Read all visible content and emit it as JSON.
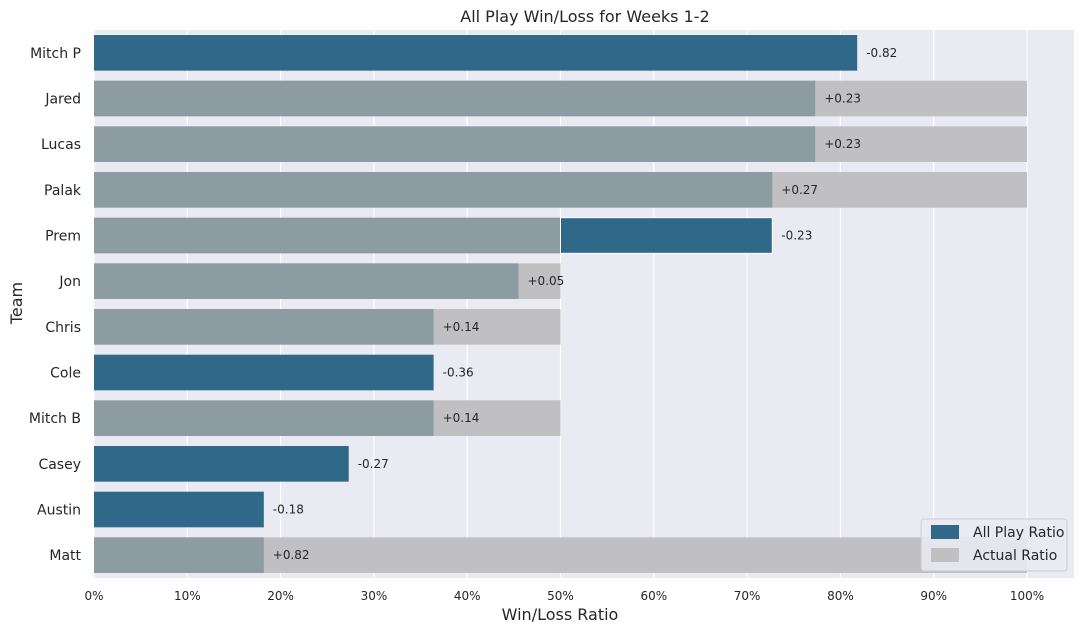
{
  "chart_data": {
    "type": "bar",
    "orientation": "horizontal",
    "title": "All Play Win/Loss for Weeks 1-2",
    "xlabel": "Win/Loss Ratio",
    "ylabel": "Team",
    "xlim": [
      0,
      1.05
    ],
    "x_ticks": [
      "0%",
      "10%",
      "20%",
      "30%",
      "40%",
      "50%",
      "60%",
      "70%",
      "80%",
      "90%",
      "100%"
    ],
    "grid": true,
    "legend_position": "bottom-right",
    "categories": [
      "Mitch P",
      "Jared",
      "Lucas",
      "Palak",
      "Prem",
      "Jon",
      "Chris",
      "Cole",
      "Mitch B",
      "Casey",
      "Austin",
      "Matt"
    ],
    "series": [
      {
        "name": "All Play Ratio",
        "color": "#2f6888",
        "values": [
          0.818,
          0.773,
          0.773,
          0.727,
          0.727,
          0.455,
          0.364,
          0.364,
          0.364,
          0.273,
          0.182,
          0.182
        ]
      },
      {
        "name": "Actual Ratio",
        "color": "#a9a9a9",
        "values": [
          0.0,
          1.0,
          1.0,
          1.0,
          0.5,
          0.5,
          0.5,
          0.0,
          0.5,
          0.0,
          0.0,
          1.0
        ]
      }
    ],
    "bar_labels": [
      "-0.82",
      "+0.23",
      "+0.23",
      "+0.27",
      "-0.23",
      "+0.05",
      "+0.14",
      "-0.36",
      "+0.14",
      "-0.27",
      "-0.18",
      "+0.82"
    ]
  }
}
